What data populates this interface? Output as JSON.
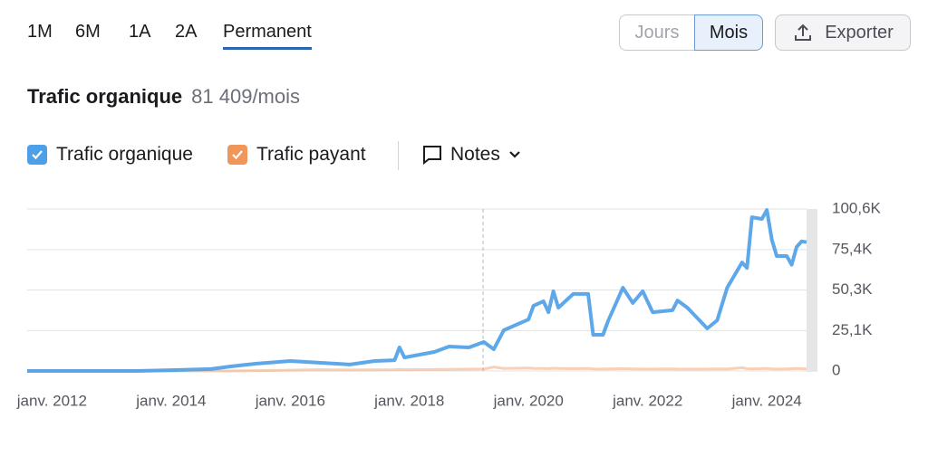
{
  "tabs": [
    "1M",
    "6M",
    "1A",
    "2A",
    "Permanent"
  ],
  "toggle": [
    "Jours",
    "Mois"
  ],
  "export": "Exporter",
  "header": {
    "title": "Trafic organique",
    "value": "81 409/mois"
  },
  "notes": "Notes",
  "chart_data": {
    "type": "line",
    "x": [
      "2011-08",
      "2013-06",
      "2014-01",
      "2014-09",
      "2015-01",
      "2015-06",
      "2016-01",
      "2016-06",
      "2017-01",
      "2017-06",
      "2017-10",
      "2017-11",
      "2017-12",
      "2018-06",
      "2018-09",
      "2019-01",
      "2019-04",
      "2019-06",
      "2019-08",
      "2020-01",
      "2020-02",
      "2020-04",
      "2020-05",
      "2020-06",
      "2020-07",
      "2020-10",
      "2021-01",
      "2021-02",
      "2021-04",
      "2021-05",
      "2021-08",
      "2021-10",
      "2021-12",
      "2022-02",
      "2022-06",
      "2022-07",
      "2022-09",
      "2023-01",
      "2023-03",
      "2023-05",
      "2023-08",
      "2023-09",
      "2023-10",
      "2023-12",
      "2024-01",
      "2024-02",
      "2024-03",
      "2024-05",
      "2024-06",
      "2024-07",
      "2024-08",
      "2024-09"
    ],
    "series": [
      {
        "name": "Trafic organique",
        "color": "#4d9fe8",
        "values": [
          0,
          0,
          500,
          1200,
          2800,
          4500,
          6200,
          5300,
          4000,
          6200,
          6700,
          14600,
          8400,
          11800,
          15200,
          14600,
          18000,
          13500,
          25300,
          32000,
          40500,
          43300,
          36500,
          49500,
          39300,
          47800,
          47800,
          22500,
          22500,
          30900,
          51700,
          42200,
          49500,
          36500,
          37700,
          43800,
          39300,
          26400,
          31500,
          51700,
          67400,
          64000,
          95500,
          94400,
          100000,
          81500,
          71400,
          71400,
          66000,
          77000,
          80500,
          80000
        ]
      },
      {
        "name": "Trafic payant",
        "color": "#f0965a",
        "values": [
          0,
          0,
          0,
          0,
          0,
          200,
          500,
          800,
          600,
          700,
          800,
          900,
          800,
          900,
          1000,
          1100,
          1200,
          2500,
          1500,
          1800,
          1500,
          1600,
          1400,
          1700,
          1500,
          1400,
          1600,
          1300,
          1200,
          1300,
          1400,
          1300,
          1200,
          1200,
          1300,
          1200,
          1100,
          1200,
          1300,
          1200,
          2000,
          1400,
          1300,
          1400,
          1500,
          1300,
          1200,
          1300,
          1400,
          1500,
          1400,
          1300
        ]
      }
    ],
    "xlim": [
      "2011-08",
      "2024-09"
    ],
    "xticks": [
      {
        "value": "2012-01",
        "label": "janv. 2012"
      },
      {
        "value": "2014-01",
        "label": "janv. 2014"
      },
      {
        "value": "2016-01",
        "label": "janv. 2016"
      },
      {
        "value": "2018-01",
        "label": "janv. 2018"
      },
      {
        "value": "2020-01",
        "label": "janv. 2020"
      },
      {
        "value": "2022-01",
        "label": "janv. 2022"
      },
      {
        "value": "2024-01",
        "label": "janv. 2024"
      }
    ],
    "ylim": [
      0,
      100600
    ],
    "yticks": [
      0,
      {
        "value": 25100,
        "label": "25,1K"
      },
      {
        "value": 50300,
        "label": "50,3K"
      },
      {
        "value": 75400,
        "label": "75,4K"
      },
      {
        "value": 100600,
        "label": "100,6K"
      }
    ],
    "grid": true
  }
}
